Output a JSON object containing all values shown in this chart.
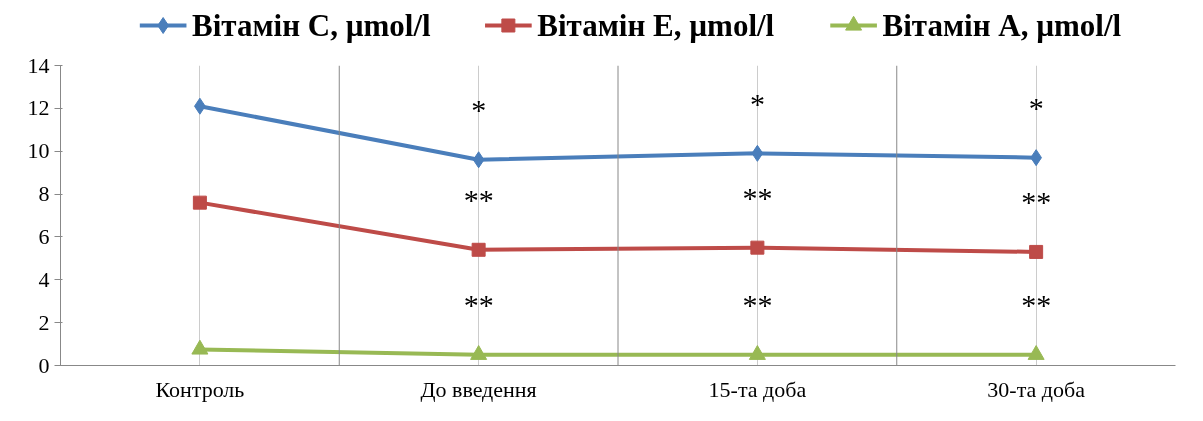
{
  "chart_data": {
    "type": "line",
    "categories": [
      "Контроль",
      "До введення",
      "15-та доба",
      "30-та доба"
    ],
    "series": [
      {
        "name": "Вітамін С, µmol/l",
        "color": "#4a7ebb",
        "values": [
          12.1,
          9.6,
          9.9,
          9.7
        ],
        "marker": "diamond"
      },
      {
        "name": "Вітамін Е, µmol/l",
        "color": "#be4b48",
        "values": [
          7.6,
          5.4,
          5.5,
          5.3
        ],
        "marker": "square"
      },
      {
        "name": "Вітамін А, µmol/l",
        "color": "#98b954",
        "values": [
          0.75,
          0.5,
          0.5,
          0.5
        ],
        "marker": "triangle"
      }
    ],
    "ylim": [
      0,
      14
    ],
    "yticks": [
      0,
      2,
      4,
      6,
      8,
      10,
      12,
      14
    ],
    "grid": "x",
    "legend": "top",
    "annotations": [
      "*",
      "*",
      "*",
      "**",
      "**",
      "**",
      "**",
      "**",
      "**"
    ]
  }
}
